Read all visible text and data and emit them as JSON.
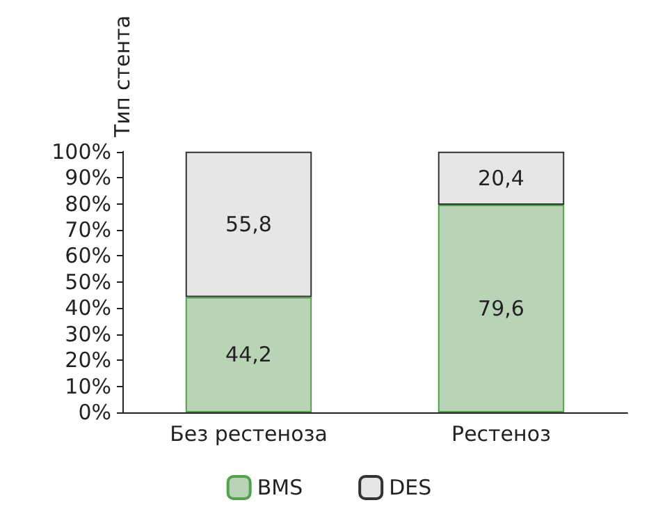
{
  "chart_data": {
    "type": "bar",
    "stacked": true,
    "ylabel": "Тип стента",
    "categories": [
      "Без рестеноза",
      "Рестеноз"
    ],
    "series": [
      {
        "name": "BMS",
        "color": "#b9d3b6",
        "values": [
          44.2,
          79.6
        ],
        "value_labels": [
          "44,2",
          "79,6"
        ]
      },
      {
        "name": "DES",
        "color": "#e6e6e6",
        "values": [
          55.8,
          20.4
        ],
        "value_labels": [
          "55,8",
          "20,4"
        ]
      }
    ],
    "ylim": [
      0,
      100
    ],
    "yticks": [
      {
        "value": 0,
        "label": "0%"
      },
      {
        "value": 10,
        "label": "10%"
      },
      {
        "value": 20,
        "label": "20%"
      },
      {
        "value": 30,
        "label": "30%"
      },
      {
        "value": 40,
        "label": "40%"
      },
      {
        "value": 50,
        "label": "50%"
      },
      {
        "value": 60,
        "label": "60%"
      },
      {
        "value": 70,
        "label": "70%"
      },
      {
        "value": 80,
        "label": "80%"
      },
      {
        "value": 90,
        "label": "90%"
      },
      {
        "value": 100,
        "label": "100%"
      }
    ],
    "grid": false,
    "legend": "bottom"
  }
}
